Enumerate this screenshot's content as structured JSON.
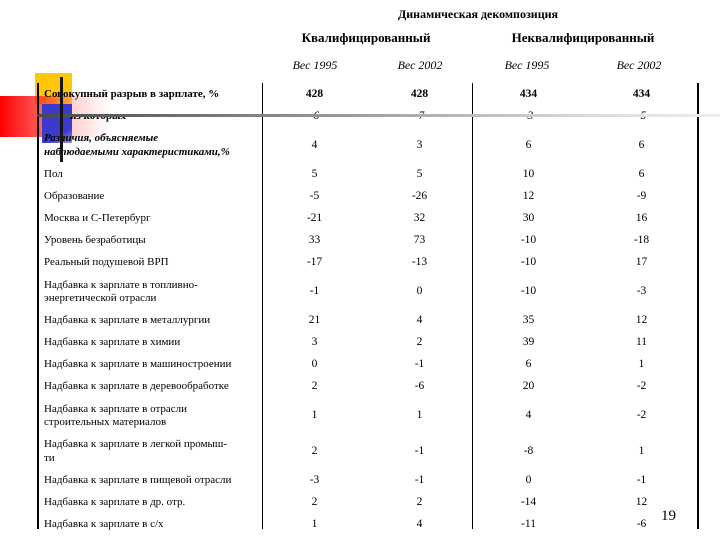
{
  "slide": {
    "title": "Динамическая декомпозиция",
    "page_number": "19"
  },
  "table": {
    "group_headers": {
      "qualified": "Квалифицированный",
      "unqualified": "Неквалифицированный"
    },
    "sub_headers": [
      "Вес 1995",
      "Вес 2002",
      "Вес 1995",
      "Вес 2002"
    ],
    "rows": [
      {
        "label": "Совокупный разрыв в зарплате, %",
        "label_emphasis": "bold",
        "value_emphasis": "bold",
        "values": [
          "428",
          "428",
          "434",
          "434"
        ]
      },
      {
        "label": "из которых",
        "label_emphasis": "bold-indent",
        "value_emphasis": "italic",
        "values": [
          "-6",
          "-7",
          "-3",
          "-5"
        ]
      },
      {
        "label": "Различия, объясняемые наблюдаемыми характеристиками,%",
        "label_emphasis": "bold-italic",
        "value_emphasis": "",
        "values": [
          "4",
          "3",
          "6",
          "6"
        ]
      },
      {
        "label": "Пол",
        "label_emphasis": "",
        "value_emphasis": "",
        "values": [
          "5",
          "5",
          "10",
          "6"
        ]
      },
      {
        "label": "Образование",
        "label_emphasis": "",
        "value_emphasis": "",
        "values": [
          "-5",
          "-26",
          "12",
          "-9"
        ]
      },
      {
        "label": "Москва и С-Петербург",
        "label_emphasis": "",
        "value_emphasis": "",
        "values": [
          "-21",
          "32",
          "30",
          "16"
        ]
      },
      {
        "label": "Уровень безработицы",
        "label_emphasis": "",
        "value_emphasis": "",
        "values": [
          "33",
          "73",
          "-10",
          "-18"
        ]
      },
      {
        "label": "Реальный подушевой ВРП",
        "label_emphasis": "",
        "value_emphasis": "",
        "values": [
          "-17",
          "-13",
          "-10",
          "17"
        ]
      },
      {
        "label": "Надбавка к зарплате в топливно-энергетической отрасли",
        "label_emphasis": "",
        "value_emphasis": "",
        "values": [
          "-1",
          "0",
          "-10",
          "-3"
        ]
      },
      {
        "label": "Надбавка к зарплате в металлургии",
        "label_emphasis": "",
        "value_emphasis": "",
        "values": [
          "21",
          "4",
          "35",
          "12"
        ]
      },
      {
        "label": "Надбавка к зарплате в химии",
        "label_emphasis": "",
        "value_emphasis": "",
        "values": [
          "3",
          "2",
          "39",
          "11"
        ]
      },
      {
        "label": "Надбавка к зарплате в машиностроении",
        "label_emphasis": "",
        "value_emphasis": "",
        "values": [
          "0",
          "-1",
          "6",
          "1"
        ]
      },
      {
        "label": "Надбавка к зарплате в деревообработке",
        "label_emphasis": "",
        "value_emphasis": "",
        "values": [
          "2",
          "-6",
          "20",
          "-2"
        ]
      },
      {
        "label": "Надбавка к зарплате в отрасли строительных материалов",
        "label_emphasis": "",
        "value_emphasis": "",
        "values": [
          "1",
          "1",
          "4",
          "-2"
        ]
      },
      {
        "label": "Надбавка к зарплате в легкой промыш-ти",
        "label_emphasis": "",
        "value_emphasis": "",
        "values": [
          "2",
          "-1",
          "-8",
          "1"
        ]
      },
      {
        "label": "Надбавка к зарплате в пищевой отрасли",
        "label_emphasis": "",
        "value_emphasis": "",
        "values": [
          "-3",
          "-1",
          "0",
          "-1"
        ]
      },
      {
        "label": "Надбавка к зарплате в др. отр.",
        "label_emphasis": "",
        "value_emphasis": "",
        "values": [
          "2",
          "2",
          "-14",
          "12"
        ]
      },
      {
        "label": "Надбавка к зарплате в с/х",
        "label_emphasis": "",
        "value_emphasis": "",
        "values": [
          "1",
          "4",
          "-11",
          "-6"
        ]
      }
    ]
  },
  "decoration": {
    "colors": {
      "yellow_square": "#ffc60a",
      "blue_square": "#3a3acd",
      "red_stripe": "#ff0000",
      "rule_gray": "#4a4a4a"
    }
  }
}
